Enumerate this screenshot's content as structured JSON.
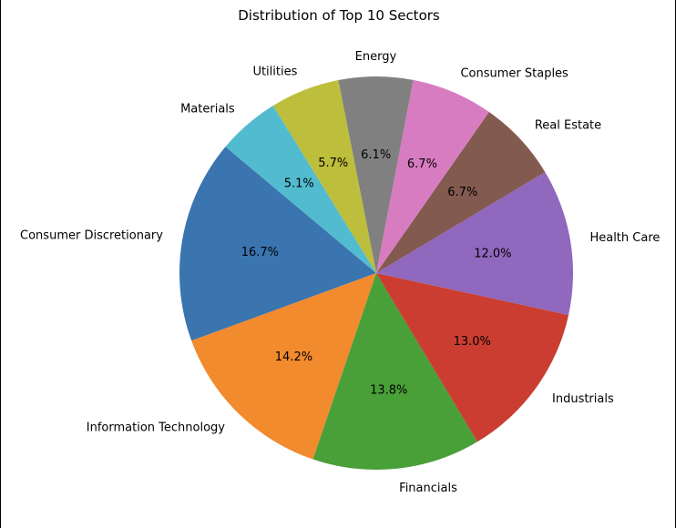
{
  "chart_data": {
    "type": "pie",
    "title": "Distribution of Top 10 Sectors",
    "start_angle_deg": 140,
    "direction": "counterclockwise",
    "slices": [
      {
        "label": "Consumer Discretionary",
        "value": 16.7,
        "pct_label": "16.7%",
        "color": "#3a75b0"
      },
      {
        "label": "Information Technology",
        "value": 14.2,
        "pct_label": "14.2%",
        "color": "#f28a2e"
      },
      {
        "label": "Financials",
        "value": 13.8,
        "pct_label": "13.8%",
        "color": "#4aa038"
      },
      {
        "label": "Industrials",
        "value": 13.0,
        "pct_label": "13.0%",
        "color": "#cb3d31"
      },
      {
        "label": "Health Care",
        "value": 12.0,
        "pct_label": "12.0%",
        "color": "#9068bd"
      },
      {
        "label": "Real Estate",
        "value": 6.7,
        "pct_label": "6.7%",
        "color": "#835a4f"
      },
      {
        "label": "Consumer Staples",
        "value": 6.7,
        "pct_label": "6.7%",
        "color": "#d87cc1"
      },
      {
        "label": "Energy",
        "value": 6.1,
        "pct_label": "6.1%",
        "color": "#808080"
      },
      {
        "label": "Utilities",
        "value": 5.7,
        "pct_label": "5.7%",
        "color": "#bdbe3c"
      },
      {
        "label": "Materials",
        "value": 5.1,
        "pct_label": "5.1%",
        "color": "#52bbcf"
      }
    ]
  }
}
